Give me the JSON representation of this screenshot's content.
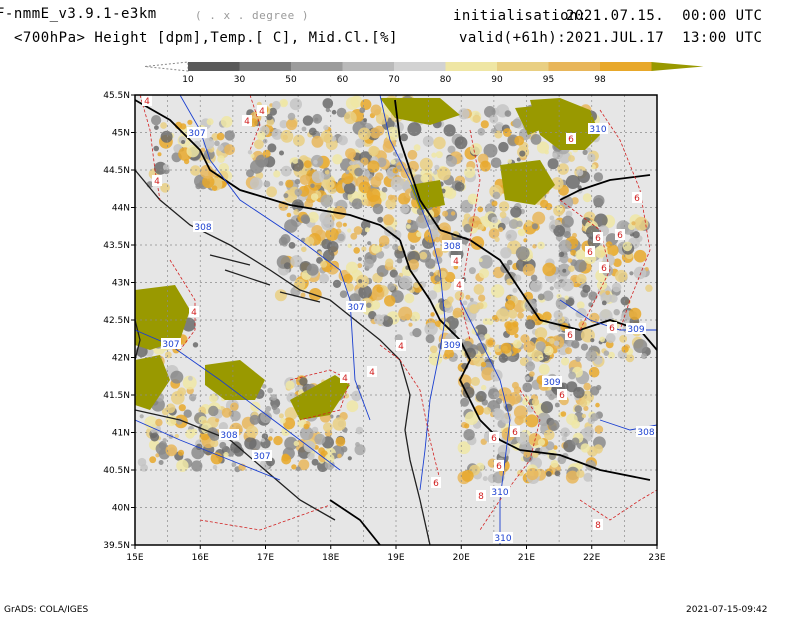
{
  "header": {
    "model": "F-nmmE_v3.9.1-e3km",
    "degree_note": "( . x . degree )",
    "level_vars": "<700hPa> Height [dpm],Temp.[ C], Mid.Cl.[%]",
    "init_label": "initialisation:",
    "init_value": "2021.07.15.  00:00 UTC",
    "valid_label": "valid(+61h):",
    "valid_value": "2021.JUL.17  13:00 UTC"
  },
  "colorbar": {
    "labels": [
      "10",
      "30",
      "50",
      "60",
      "70",
      "80",
      "90",
      "95",
      "98"
    ],
    "colors": [
      "#5a5a5a",
      "#7a7a7a",
      "#9c9c9c",
      "#bababa",
      "#d2d2d2",
      "#efe6a4",
      "#e9cf82",
      "#e8b65a",
      "#e8a82a",
      "#999900"
    ]
  },
  "map": {
    "lat_labels": [
      "45.5N",
      "45N",
      "44.5N",
      "44N",
      "43.5N",
      "43N",
      "42.5N",
      "42N",
      "41.5N",
      "41N",
      "40.5N",
      "40N",
      "39.5N"
    ],
    "lon_labels": [
      "15E",
      "16E",
      "17E",
      "18E",
      "19E",
      "20E",
      "21E",
      "22E",
      "23E"
    ],
    "height_labels": [
      "307",
      "308",
      "307",
      "308",
      "307",
      "307",
      "308",
      "309",
      "309",
      "310",
      "310",
      "309",
      "308",
      "310"
    ],
    "temp_labels": [
      "4",
      "4",
      "4",
      "4",
      "4",
      "4",
      "4",
      "4",
      "4",
      "4",
      "6",
      "6",
      "6",
      "6",
      "6",
      "6",
      "6",
      "6",
      "6",
      "6",
      "6",
      "6",
      "6",
      "8",
      "8",
      "8"
    ],
    "colors": {
      "background": "#e6e6e6",
      "height_contour": "#1a3fd0",
      "temp_contour": "#d22020",
      "border": "#000000",
      "coast": "#202020"
    }
  },
  "footer": {
    "left": "GrADS: COLA/IGES",
    "right": "2021-07-15-09:42"
  }
}
